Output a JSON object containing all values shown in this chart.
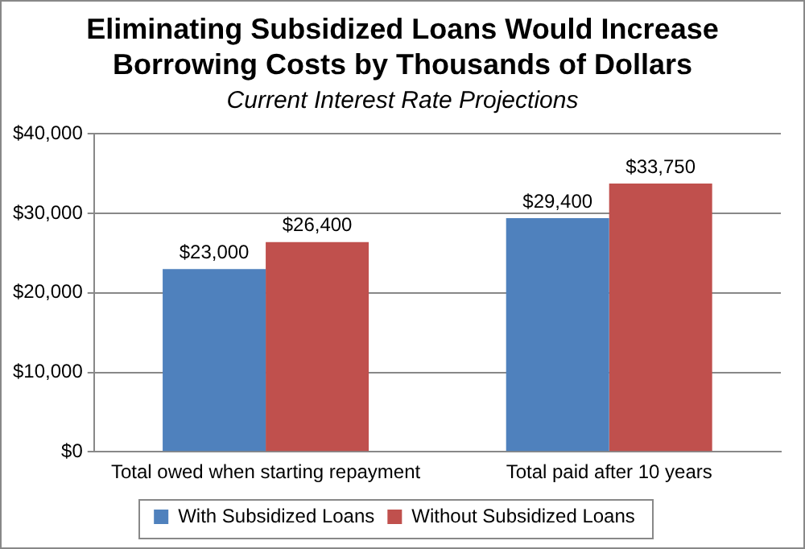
{
  "chart_data": {
    "type": "bar",
    "title": "Eliminating Subsidized Loans Would Increase Borrowing Costs by Thousands of Dollars",
    "subtitle": "Current Interest Rate Projections",
    "categories": [
      "Total owed when starting repayment",
      "Total paid after 10 years"
    ],
    "series": [
      {
        "name": "With Subsidized Loans",
        "color": "#4f81bd",
        "values": [
          23000,
          29400
        ],
        "value_labels": [
          "$23,000",
          "$29,400"
        ]
      },
      {
        "name": "Without Subsidized Loans",
        "color": "#c0504d",
        "values": [
          26400,
          33750
        ],
        "value_labels": [
          "$26,400",
          "$33,750"
        ]
      }
    ],
    "ylim": [
      0,
      40000
    ],
    "yticks": [
      {
        "value": 0,
        "label": "$0"
      },
      {
        "value": 10000,
        "label": "$10,000"
      },
      {
        "value": 20000,
        "label": "$20,000"
      },
      {
        "value": 30000,
        "label": "$30,000"
      },
      {
        "value": 40000,
        "label": "$40,000"
      }
    ],
    "grid": "y",
    "legend": "bottom"
  }
}
